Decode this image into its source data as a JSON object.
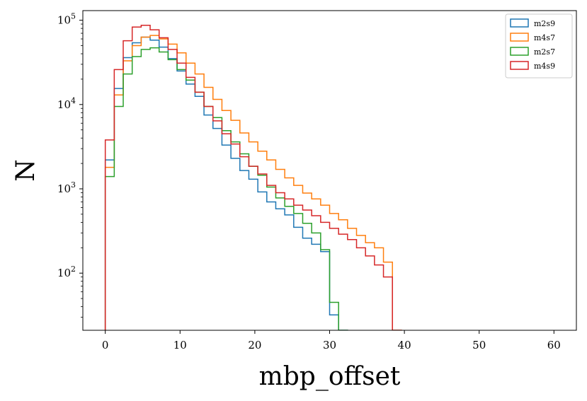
{
  "chart_data": {
    "type": "histogram-step",
    "xlabel": "mbp_offset",
    "ylabel": "N",
    "yscale": "log",
    "xlim": [
      -3,
      63
    ],
    "ylim": [
      21,
      130000
    ],
    "xticks": [
      0,
      10,
      20,
      30,
      40,
      50,
      60
    ],
    "yticks": [
      {
        "value": 100,
        "base": "10",
        "exp": "2"
      },
      {
        "value": 1000,
        "base": "10",
        "exp": "3"
      },
      {
        "value": 10000,
        "base": "10",
        "exp": "4"
      },
      {
        "value": 100000,
        "base": "10",
        "exp": "5"
      }
    ],
    "grid": false,
    "legend_position": "top-right",
    "bin_start": 0,
    "bin_width": 1.2,
    "series": [
      {
        "name": "m2s9",
        "color": "#1f77b4",
        "values": [
          2200,
          15500,
          36000,
          54000,
          63000,
          58000,
          48000,
          35000,
          25000,
          17500,
          12500,
          7500,
          5200,
          3300,
          2300,
          1650,
          1300,
          920,
          700,
          580,
          490,
          350,
          260,
          220,
          180,
          32,
          21
        ]
      },
      {
        "name": "m4s7",
        "color": "#ff7f0e",
        "values": [
          1800,
          13000,
          33000,
          50000,
          63000,
          66000,
          60000,
          52000,
          41000,
          31000,
          23000,
          16000,
          11500,
          8500,
          6500,
          4600,
          3600,
          2800,
          2200,
          1700,
          1350,
          1100,
          890,
          760,
          640,
          510,
          430,
          340,
          280,
          230,
          200,
          135,
          21
        ]
      },
      {
        "name": "m2s7",
        "color": "#2ca02c",
        "values": [
          1400,
          9500,
          23000,
          37000,
          45000,
          47000,
          42000,
          34000,
          26000,
          19500,
          14000,
          9500,
          7000,
          4900,
          3600,
          2600,
          1850,
          1450,
          1050,
          780,
          620,
          510,
          390,
          300,
          190,
          45,
          21
        ]
      },
      {
        "name": "m4s9",
        "color": "#d62728",
        "values": [
          3800,
          26000,
          57000,
          83000,
          87000,
          77000,
          62000,
          45000,
          31000,
          21000,
          14000,
          9500,
          6400,
          4500,
          3400,
          2400,
          1850,
          1500,
          1100,
          900,
          760,
          640,
          560,
          480,
          400,
          340,
          290,
          250,
          200,
          160,
          125,
          90,
          21
        ]
      }
    ]
  }
}
